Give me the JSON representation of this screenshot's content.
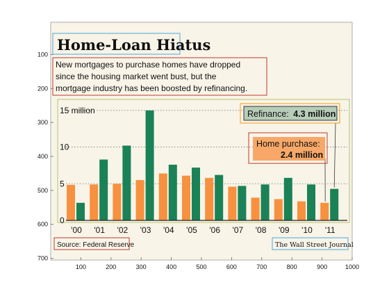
{
  "chart_data": {
    "type": "bar",
    "title": "Home-Loan Hiatus",
    "subtitle": [
      "New mortgages to purchase homes have dropped",
      "since the housing market went bust, but the",
      "mortgage industry has been boosted by refinancing."
    ],
    "categories": [
      "'00",
      "'01",
      "'02",
      "'03",
      "'04",
      "'05",
      "'06",
      "'07",
      "'08",
      "'09",
      "'10",
      "'11"
    ],
    "y_ticks": [
      {
        "value": 0,
        "label": "0"
      },
      {
        "value": 5,
        "label": "5"
      },
      {
        "value": 10,
        "label": "10"
      },
      {
        "value": 15,
        "label": "15 million"
      }
    ],
    "ylim": [
      0,
      16.5
    ],
    "series": [
      {
        "name": "Home purchase",
        "color": "#f7913f",
        "values": [
          4.85,
          4.9,
          5.0,
          5.5,
          6.4,
          6.1,
          5.8,
          4.6,
          3.1,
          2.9,
          2.6,
          2.4
        ]
      },
      {
        "name": "Refinance",
        "color": "#1a8256",
        "values": [
          2.4,
          8.3,
          10.2,
          15.0,
          7.6,
          7.2,
          6.2,
          4.7,
          4.9,
          5.8,
          4.9,
          4.3
        ]
      }
    ],
    "callouts": {
      "refinance": {
        "label": "Refinance:",
        "value": "4.3 million"
      },
      "purchase": {
        "label": "Home purchase:",
        "value": "2.4 million"
      }
    },
    "source": "Source: Federal Reserve",
    "publisher": "The Wall Street Journal",
    "frame_axes": {
      "x_ticks": [
        "100",
        "200",
        "300",
        "400",
        "500",
        "600",
        "700",
        "800",
        "900",
        "1000"
      ],
      "y_ticks": [
        "100",
        "200",
        "300",
        "400",
        "500",
        "600",
        "700"
      ]
    }
  },
  "colors": {
    "background": "#f8f4e8",
    "outline_blue": "#4aa9de",
    "outline_red": "#c0392b",
    "outline_orange": "#f39c12",
    "outline_olive": "#a8b84a",
    "outline_purple": "#a569bd"
  }
}
